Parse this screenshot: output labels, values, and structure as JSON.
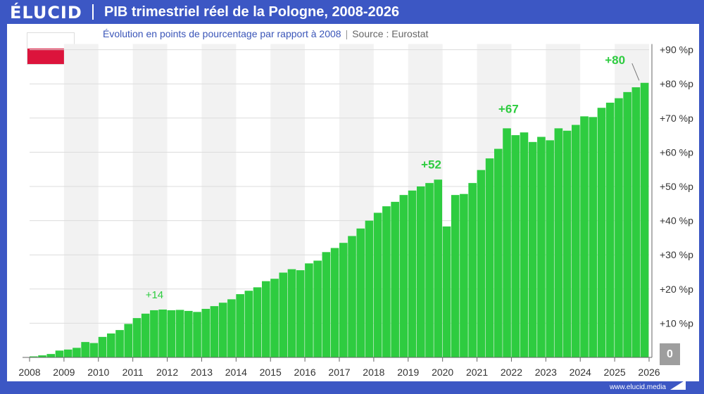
{
  "brand": {
    "logo": "ÉLUCID",
    "url": "www.elucid.media"
  },
  "header": {
    "title": "PIB trimestriel réel de la Pologne, 2008-2026",
    "subtitle": "Évolution en points de pourcentage par rapport à 2008",
    "separator": "|",
    "source": "Source : Eurostat"
  },
  "flag": {
    "name": "Pologne",
    "colors": [
      "#ffffff",
      "#dc143c"
    ]
  },
  "zero_label": "0",
  "colors": {
    "bar": "#2ecc40",
    "annotation": "#2ecc40",
    "header": "#3c57c4",
    "zero_box": "#9e9e9e"
  },
  "chart_data": {
    "type": "bar",
    "title": "PIB trimestriel réel de la Pologne, 2008-2026",
    "subtitle": "Évolution en points de pourcentage par rapport à 2008",
    "x_ticks": [
      "2008",
      "2009",
      "2010",
      "2011",
      "2012",
      "2013",
      "2014",
      "2015",
      "2016",
      "2017",
      "2018",
      "2019",
      "2020",
      "2021",
      "2022",
      "2023",
      "2024",
      "2025",
      "2026"
    ],
    "y_ticks": [
      "+10 %p",
      "+20 %p",
      "+30 %p",
      "+40 %p",
      "+50 %p",
      "+60 %p",
      "+70 %p",
      "+80 %p",
      "+90 %p"
    ],
    "ylim": [
      0,
      90
    ],
    "grid": true,
    "alternating_year_bands": true,
    "values": [
      0.3,
      0.6,
      1.0,
      2.0,
      2.3,
      2.8,
      4.5,
      4.2,
      6.0,
      7.0,
      8.0,
      9.8,
      11.5,
      12.8,
      13.8,
      14.0,
      13.8,
      13.9,
      13.6,
      13.3,
      14.2,
      15.0,
      16.0,
      17.0,
      18.5,
      19.5,
      20.5,
      22.3,
      23.0,
      24.8,
      25.8,
      25.5,
      27.5,
      28.3,
      30.8,
      32.0,
      33.5,
      35.5,
      37.7,
      40.0,
      42.3,
      44.2,
      45.5,
      47.5,
      48.8,
      50.0,
      51.0,
      52.0,
      38.3,
      47.5,
      47.8,
      51.0,
      54.8,
      58.2,
      61.0,
      67.0,
      65.0,
      65.8,
      63.0,
      64.5,
      63.5,
      67.0,
      66.3,
      68.0,
      70.5,
      70.3,
      73.0,
      74.5,
      75.8,
      77.6,
      79.0,
      80.3
    ],
    "annotations": [
      {
        "label": "+14",
        "value": 14
      },
      {
        "label": "+52",
        "value": 52
      },
      {
        "label": "+67",
        "value": 67
      },
      {
        "label": "+80",
        "value": 80
      }
    ]
  }
}
